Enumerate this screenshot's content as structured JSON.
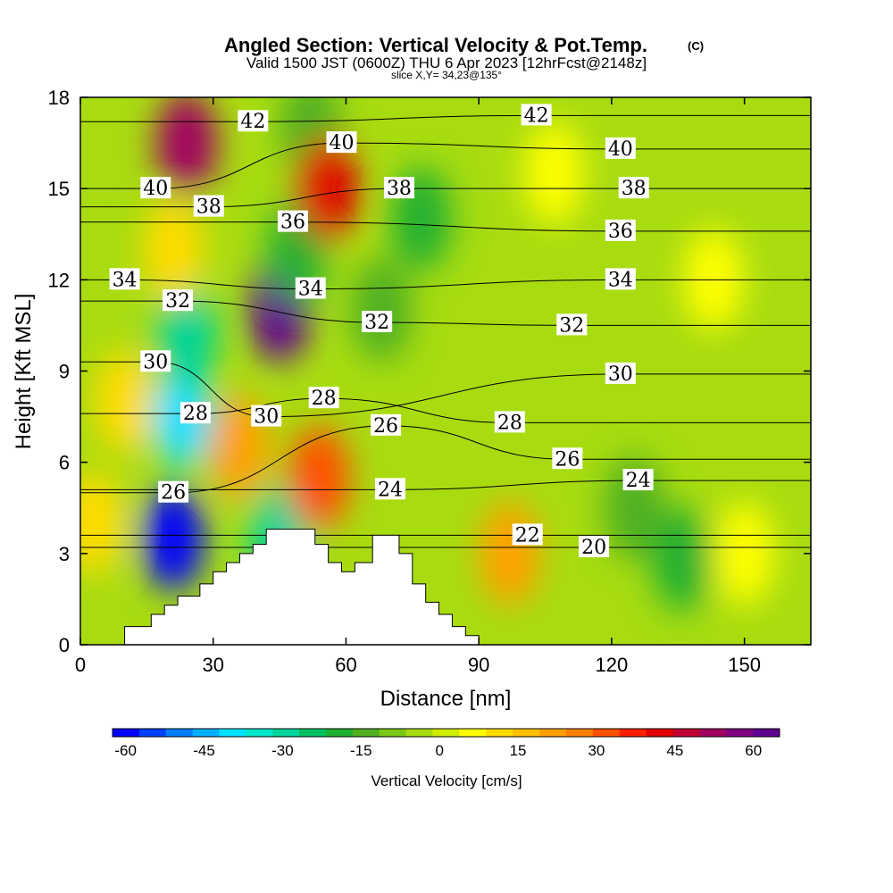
{
  "chart_data": {
    "type": "heatmap",
    "title": "Angled Section: Vertical Velocity & Pot.Temp.",
    "title_mark": "(C)",
    "subtitle": "Valid 1500 JST (0600Z) THU 6 Apr 2023 [12hrFcst@2148z]",
    "subtitle2": "slice X,Y= 34,23@135°",
    "xlabel": "Distance [nm]",
    "ylabel": "Height [Kft MSL]",
    "xlim": [
      0,
      165
    ],
    "ylim": [
      0,
      18
    ],
    "xticks": [
      0,
      30,
      60,
      90,
      120,
      150
    ],
    "yticks": [
      0,
      3,
      6,
      9,
      12,
      15,
      18
    ],
    "colorbar": {
      "label": "Vertical Velocity [cm/s]",
      "ticks": [
        -60,
        -45,
        -30,
        -15,
        0,
        15,
        30,
        45,
        60
      ],
      "range": [
        -62.5,
        65
      ],
      "colors": [
        "#0000ff",
        "#0040ff",
        "#0080ff",
        "#00b0ff",
        "#00e0ff",
        "#00e6c8",
        "#00d49a",
        "#00c060",
        "#20b030",
        "#50b020",
        "#7cc818",
        "#a8dc10",
        "#d0ec00",
        "#ffff00",
        "#ffdc00",
        "#ffc000",
        "#ffa000",
        "#ff8000",
        "#ff5000",
        "#ff2000",
        "#e00000",
        "#c00030",
        "#a00060",
        "#800080",
        "#600090"
      ]
    },
    "vertical_velocity_cm_s": [
      {
        "x": 10,
        "y": 8,
        "value": 10
      },
      {
        "x": 3,
        "y": 4,
        "value": 10
      },
      {
        "x": 21,
        "y": 3.5,
        "value": -60
      },
      {
        "x": 23,
        "y": 7.5,
        "value": -40
      },
      {
        "x": 24,
        "y": 10.2,
        "value": -30
      },
      {
        "x": 21,
        "y": 13,
        "value": 10
      },
      {
        "x": 24,
        "y": 16.5,
        "value": 50
      },
      {
        "x": 36,
        "y": 6.5,
        "value": 20
      },
      {
        "x": 45,
        "y": 11,
        "value": 65
      },
      {
        "x": 45,
        "y": 3.5,
        "value": -30
      },
      {
        "x": 49,
        "y": 13,
        "value": -20
      },
      {
        "x": 52,
        "y": 17,
        "value": -15
      },
      {
        "x": 56,
        "y": 15,
        "value": 40
      },
      {
        "x": 54,
        "y": 5.5,
        "value": 30
      },
      {
        "x": 77,
        "y": 14,
        "value": -20
      },
      {
        "x": 68,
        "y": 11,
        "value": -15
      },
      {
        "x": 97,
        "y": 3,
        "value": 20
      },
      {
        "x": 107,
        "y": 15.5,
        "value": 5
      },
      {
        "x": 143,
        "y": 12,
        "value": 8
      },
      {
        "x": 125,
        "y": 4.5,
        "value": -15
      },
      {
        "x": 136,
        "y": 2.8,
        "value": -20
      },
      {
        "x": 150,
        "y": 3,
        "value": 5
      }
    ],
    "potential_temperature_contours": [
      {
        "level": 20,
        "labels": [
          {
            "x": 116,
            "y": 3.2
          }
        ]
      },
      {
        "level": 22,
        "labels": [
          {
            "x": 101,
            "y": 3.6
          }
        ]
      },
      {
        "level": 24,
        "labels": [
          {
            "x": 70,
            "y": 5.1
          },
          {
            "x": 126,
            "y": 5.4
          }
        ]
      },
      {
        "level": 26,
        "labels": [
          {
            "x": 21,
            "y": 5.0
          },
          {
            "x": 69,
            "y": 7.2
          },
          {
            "x": 110,
            "y": 6.1
          }
        ]
      },
      {
        "level": 28,
        "labels": [
          {
            "x": 26,
            "y": 7.6
          },
          {
            "x": 55,
            "y": 8.1
          },
          {
            "x": 97,
            "y": 7.3
          }
        ]
      },
      {
        "level": 30,
        "labels": [
          {
            "x": 17,
            "y": 9.3
          },
          {
            "x": 42,
            "y": 7.5
          },
          {
            "x": 122,
            "y": 8.9
          }
        ]
      },
      {
        "level": 32,
        "labels": [
          {
            "x": 22,
            "y": 11.3
          },
          {
            "x": 67,
            "y": 10.6
          },
          {
            "x": 111,
            "y": 10.5
          }
        ]
      },
      {
        "level": 34,
        "labels": [
          {
            "x": 10,
            "y": 12.0
          },
          {
            "x": 52,
            "y": 11.7
          },
          {
            "x": 122,
            "y": 12.0
          }
        ]
      },
      {
        "level": 36,
        "labels": [
          {
            "x": 48,
            "y": 13.9
          },
          {
            "x": 122,
            "y": 13.6
          }
        ]
      },
      {
        "level": 38,
        "labels": [
          {
            "x": 29,
            "y": 14.4
          },
          {
            "x": 72,
            "y": 15.0
          },
          {
            "x": 125,
            "y": 15.0
          }
        ]
      },
      {
        "level": 40,
        "labels": [
          {
            "x": 17,
            "y": 15.0
          },
          {
            "x": 59,
            "y": 16.5
          },
          {
            "x": 122,
            "y": 16.3
          }
        ]
      },
      {
        "level": 42,
        "labels": [
          {
            "x": 39,
            "y": 17.2
          },
          {
            "x": 103,
            "y": 17.4
          }
        ]
      }
    ],
    "terrain_height_kft": {
      "x": [
        0,
        10,
        16,
        19,
        22,
        27,
        30,
        33,
        36,
        39,
        42,
        50,
        53,
        56,
        59,
        62,
        66,
        72,
        75,
        78,
        81,
        84,
        87,
        90,
        165
      ],
      "y": [
        0,
        0.6,
        1.0,
        1.3,
        1.6,
        2.0,
        2.4,
        2.7,
        3.0,
        3.3,
        3.8,
        3.8,
        3.3,
        2.7,
        2.4,
        2.7,
        3.6,
        3.0,
        2.0,
        1.4,
        1.0,
        0.6,
        0.3,
        0,
        0
      ]
    }
  }
}
